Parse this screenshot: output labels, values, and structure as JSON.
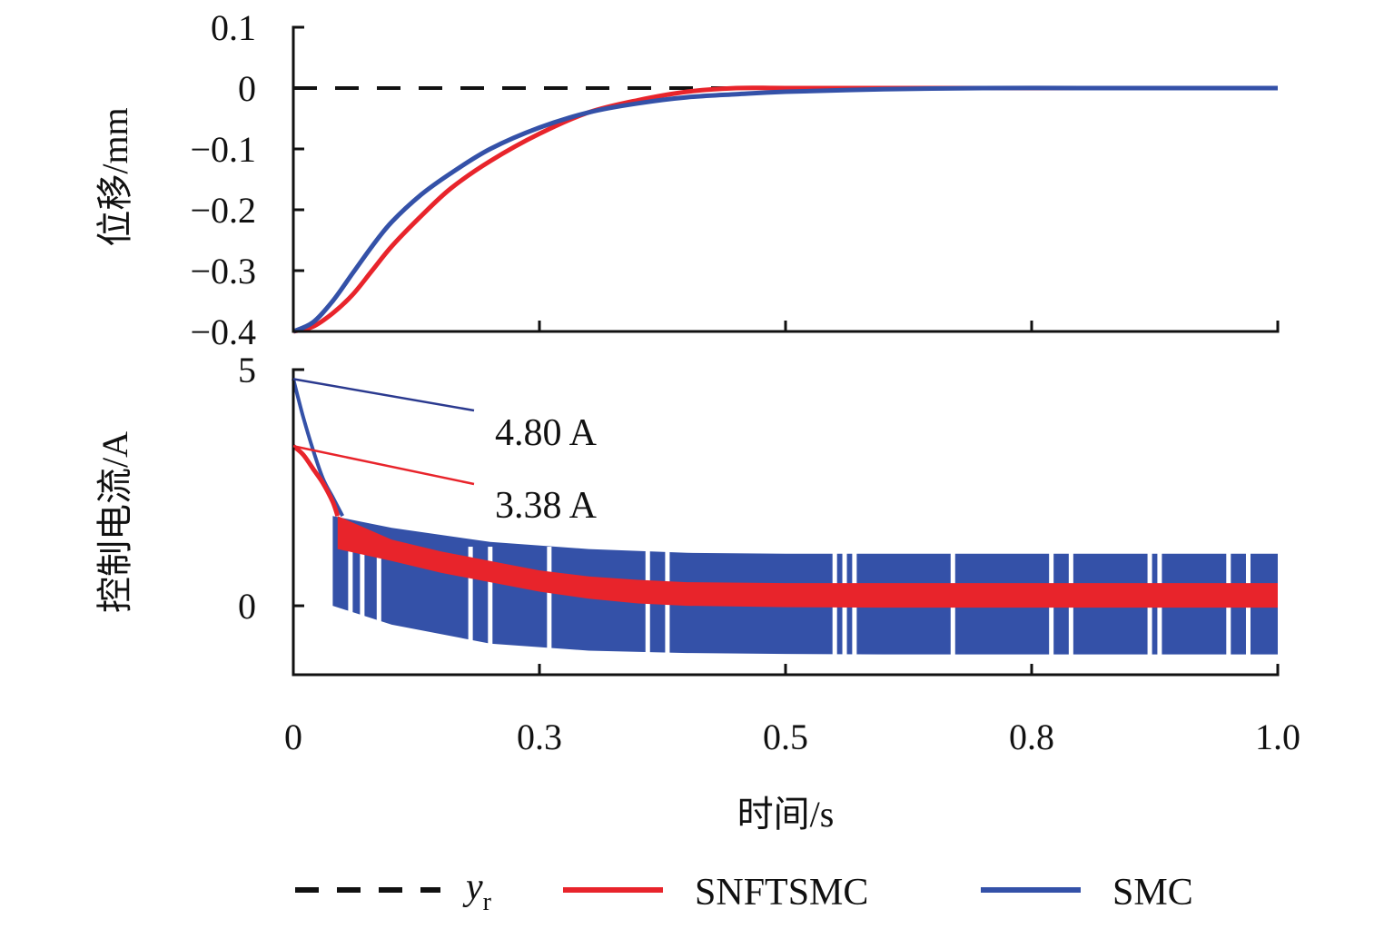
{
  "chart_data": [
    {
      "id": "displacement",
      "type": "line",
      "ylabel": "位移/mm",
      "xlabel": "",
      "xlim": [
        0,
        1.0
      ],
      "ylim": [
        -0.4,
        0.1
      ],
      "yticks": [
        0.1,
        0,
        -0.1,
        -0.2,
        -0.3,
        -0.4
      ],
      "ytick_labels": [
        "0.1",
        "0",
        "−0.1",
        "−0.2",
        "−0.3",
        "−0.4"
      ],
      "grid": false,
      "series": [
        {
          "name": "y_r",
          "style": "dashed",
          "color": "#111111",
          "x": [
            0,
            1.0
          ],
          "y": [
            0,
            0
          ]
        },
        {
          "name": "SNFTSMC",
          "style": "solid",
          "color": "#e8242b",
          "x": [
            0,
            0.02,
            0.04,
            0.06,
            0.08,
            0.1,
            0.13,
            0.16,
            0.2,
            0.25,
            0.3,
            0.35,
            0.4,
            0.45,
            0.5,
            0.6,
            0.7,
            0.8,
            0.9,
            1.0
          ],
          "y": [
            -0.4,
            -0.392,
            -0.37,
            -0.34,
            -0.3,
            -0.26,
            -0.21,
            -0.165,
            -0.12,
            -0.075,
            -0.04,
            -0.02,
            -0.006,
            0.0,
            0.0,
            0.0,
            0.0,
            0.0,
            0.0,
            0.0
          ]
        },
        {
          "name": "SMC",
          "style": "solid",
          "color": "#3451a8",
          "x": [
            0,
            0.02,
            0.04,
            0.06,
            0.08,
            0.1,
            0.13,
            0.16,
            0.2,
            0.25,
            0.3,
            0.35,
            0.4,
            0.45,
            0.5,
            0.6,
            0.7,
            0.8,
            0.9,
            1.0
          ],
          "y": [
            -0.4,
            -0.385,
            -0.35,
            -0.305,
            -0.26,
            -0.22,
            -0.175,
            -0.14,
            -0.1,
            -0.065,
            -0.04,
            -0.025,
            -0.015,
            -0.01,
            -0.006,
            -0.002,
            0.0,
            0.0,
            0.0,
            0.0
          ]
        }
      ]
    },
    {
      "id": "control-current",
      "type": "line",
      "ylabel": "控制电流/A",
      "xlabel": "时间/s",
      "xlim": [
        0,
        1.0
      ],
      "ylim": [
        -1.45,
        5
      ],
      "yticks": [
        5,
        0
      ],
      "ytick_labels": [
        "5",
        "0"
      ],
      "xticks": [
        0,
        0.25,
        0.5,
        0.75,
        1.0
      ],
      "xtick_labels": [
        "0",
        "0.3",
        "0.5",
        "0.8",
        "1.0"
      ],
      "grid": false,
      "series": [
        {
          "name": "SMC",
          "color": "#3451a8",
          "note": "chattering band",
          "x": [
            0,
            0.01,
            0.02,
            0.03,
            0.04,
            0.05
          ],
          "y": [
            4.8,
            4.0,
            3.3,
            2.7,
            2.3,
            1.9
          ],
          "band": {
            "x": [
              0.04,
              0.1,
              0.2,
              0.3,
              0.4,
              0.5,
              0.6,
              0.8,
              1.0
            ],
            "upper": [
              1.9,
              1.65,
              1.35,
              1.2,
              1.12,
              1.1,
              1.1,
              1.1,
              1.1
            ],
            "lower": [
              0.0,
              -0.4,
              -0.8,
              -0.95,
              -1.0,
              -1.02,
              -1.03,
              -1.03,
              -1.03
            ]
          }
        },
        {
          "name": "SNFTSMC",
          "color": "#e8242b",
          "note": "chattering band",
          "x": [
            0,
            0.01,
            0.02,
            0.03,
            0.04,
            0.045
          ],
          "y": [
            3.38,
            3.2,
            2.9,
            2.6,
            2.2,
            1.9
          ],
          "band": {
            "x": [
              0.045,
              0.1,
              0.15,
              0.2,
              0.25,
              0.3,
              0.35,
              0.4,
              0.5,
              0.6,
              0.8,
              1.0
            ],
            "upper": [
              1.9,
              1.4,
              1.15,
              0.95,
              0.75,
              0.62,
              0.55,
              0.5,
              0.48,
              0.48,
              0.48,
              0.48
            ],
            "lower": [
              1.2,
              0.95,
              0.7,
              0.5,
              0.3,
              0.15,
              0.05,
              0.0,
              -0.03,
              -0.04,
              -0.04,
              -0.04
            ]
          }
        }
      ],
      "annotations": [
        {
          "text": "4.80 A",
          "value": 4.8,
          "color": "#2b3a8f"
        },
        {
          "text": "3.38 A",
          "value": 3.38,
          "color": "#e8242b"
        }
      ]
    }
  ],
  "legend": {
    "placement": "bottom",
    "items": [
      {
        "label": "y",
        "subscript": "r",
        "style": "dashed",
        "color": "#111111"
      },
      {
        "label": "SNFTSMC",
        "style": "solid",
        "color": "#e8242b"
      },
      {
        "label": "SMC",
        "style": "solid",
        "color": "#3451a8"
      }
    ]
  }
}
